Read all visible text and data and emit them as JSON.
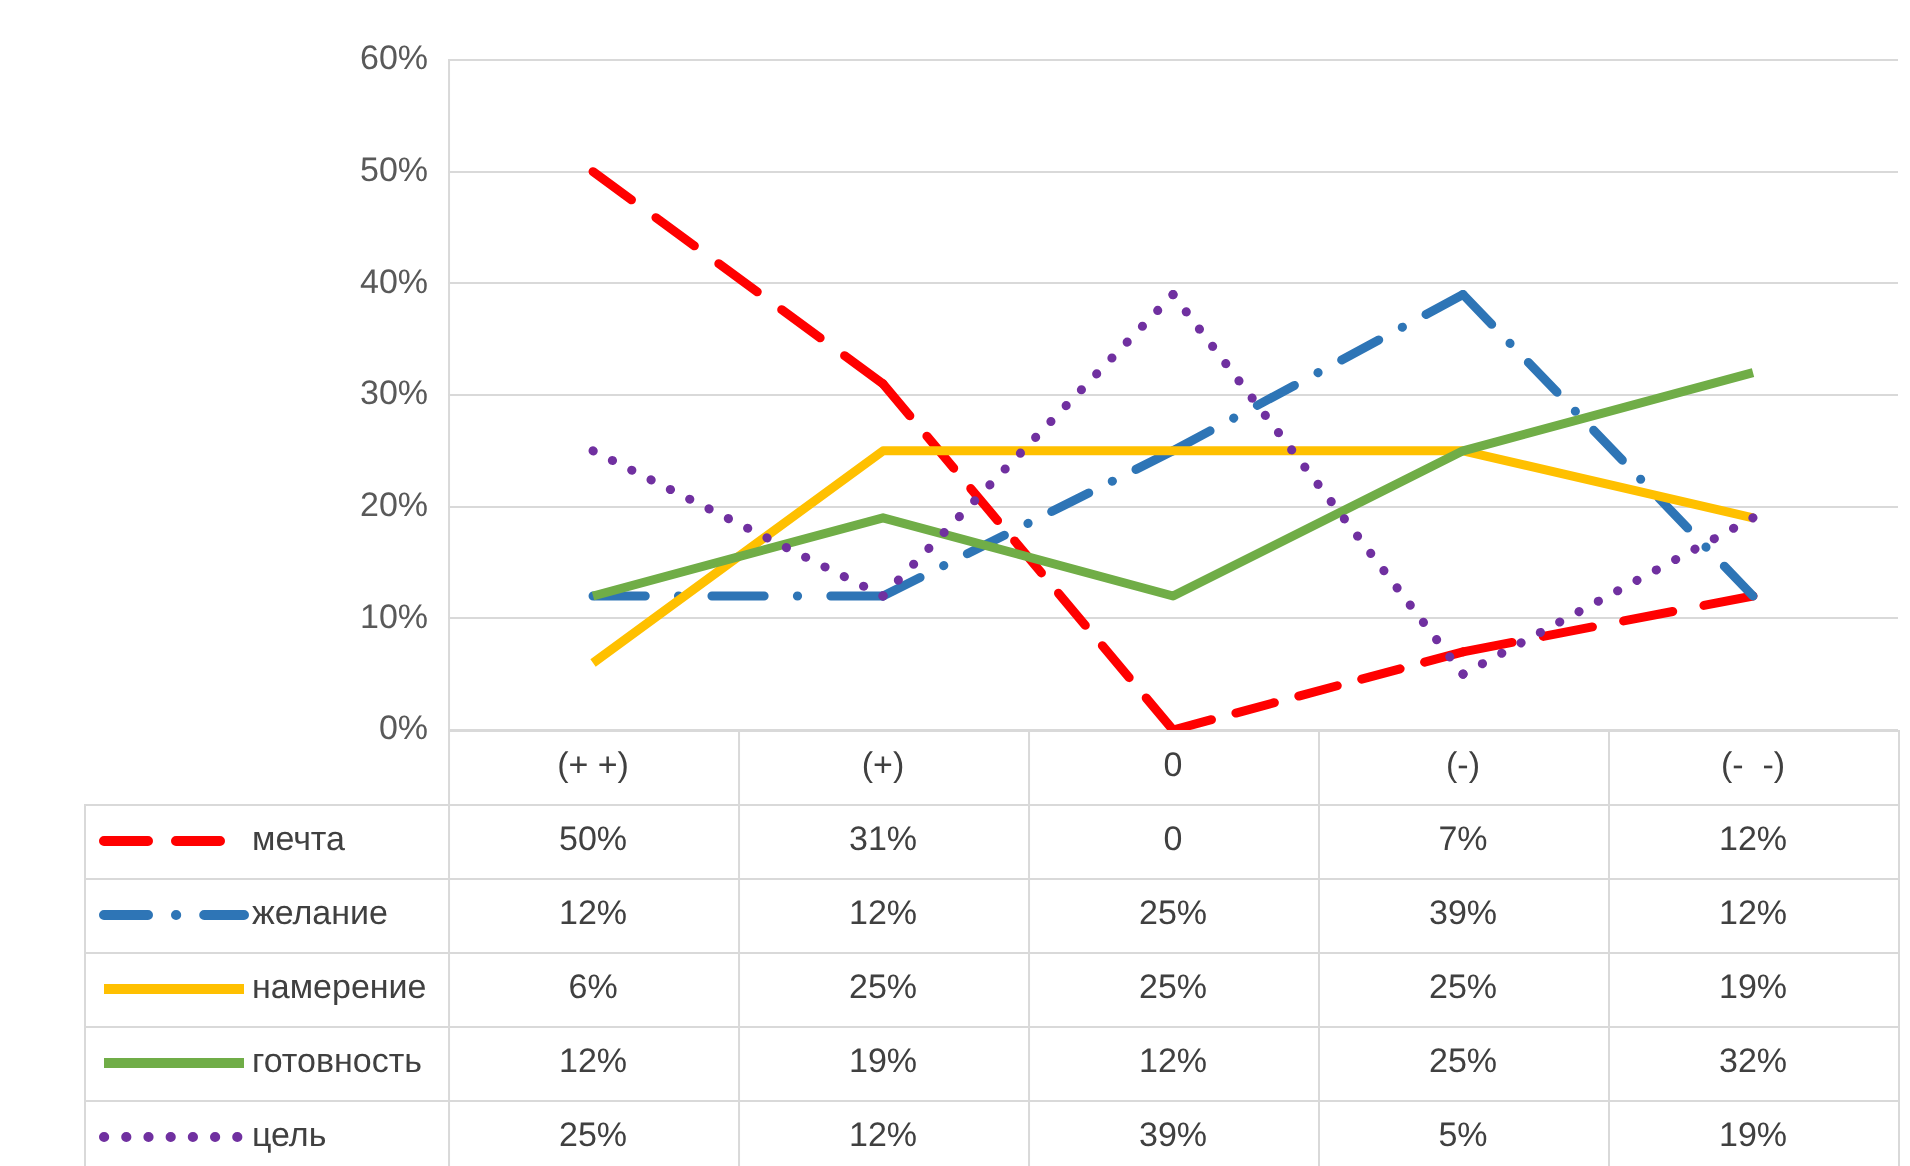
{
  "chart_data": {
    "type": "line",
    "categories": [
      "(+ +)",
      "(+)",
      "0",
      "(-)",
      "(-  -)"
    ],
    "ylim": [
      0,
      60
    ],
    "yticks": [
      {
        "value": 0,
        "label": "0%"
      },
      {
        "value": 10,
        "label": "10%"
      },
      {
        "value": 20,
        "label": "20%"
      },
      {
        "value": 30,
        "label": "30%"
      },
      {
        "value": 40,
        "label": "40%"
      },
      {
        "value": 50,
        "label": "50%"
      },
      {
        "value": 60,
        "label": "60%"
      }
    ],
    "grid": "y",
    "legend": "bottom",
    "marker": "none",
    "series": [
      {
        "name": "мечта",
        "color": "#ff0000",
        "line_style": "dashed",
        "values": [
          50,
          31,
          0,
          7,
          12
        ],
        "value_labels": [
          "50%",
          "31%",
          "0",
          "7%",
          "12%"
        ]
      },
      {
        "name": "желание",
        "color": "#2e75b6",
        "line_style": "dashdot",
        "values": [
          12,
          12,
          25,
          39,
          12
        ],
        "value_labels": [
          "12%",
          "12%",
          "25%",
          "39%",
          "12%"
        ]
      },
      {
        "name": "намерение",
        "color": "#ffc000",
        "line_style": "solid",
        "values": [
          6,
          25,
          25,
          25,
          19
        ],
        "value_labels": [
          "6%",
          "25%",
          "25%",
          "25%",
          "19%"
        ]
      },
      {
        "name": "готовность",
        "color": "#70ad47",
        "line_style": "solid",
        "values": [
          12,
          19,
          12,
          25,
          32
        ],
        "value_labels": [
          "12%",
          "19%",
          "12%",
          "25%",
          "32%"
        ]
      },
      {
        "name": "цель",
        "color": "#7030a0",
        "line_style": "dotted",
        "values": [
          25,
          12,
          39,
          5,
          19
        ],
        "value_labels": [
          "25%",
          "12%",
          "39%",
          "5%",
          "19%"
        ]
      }
    ]
  }
}
